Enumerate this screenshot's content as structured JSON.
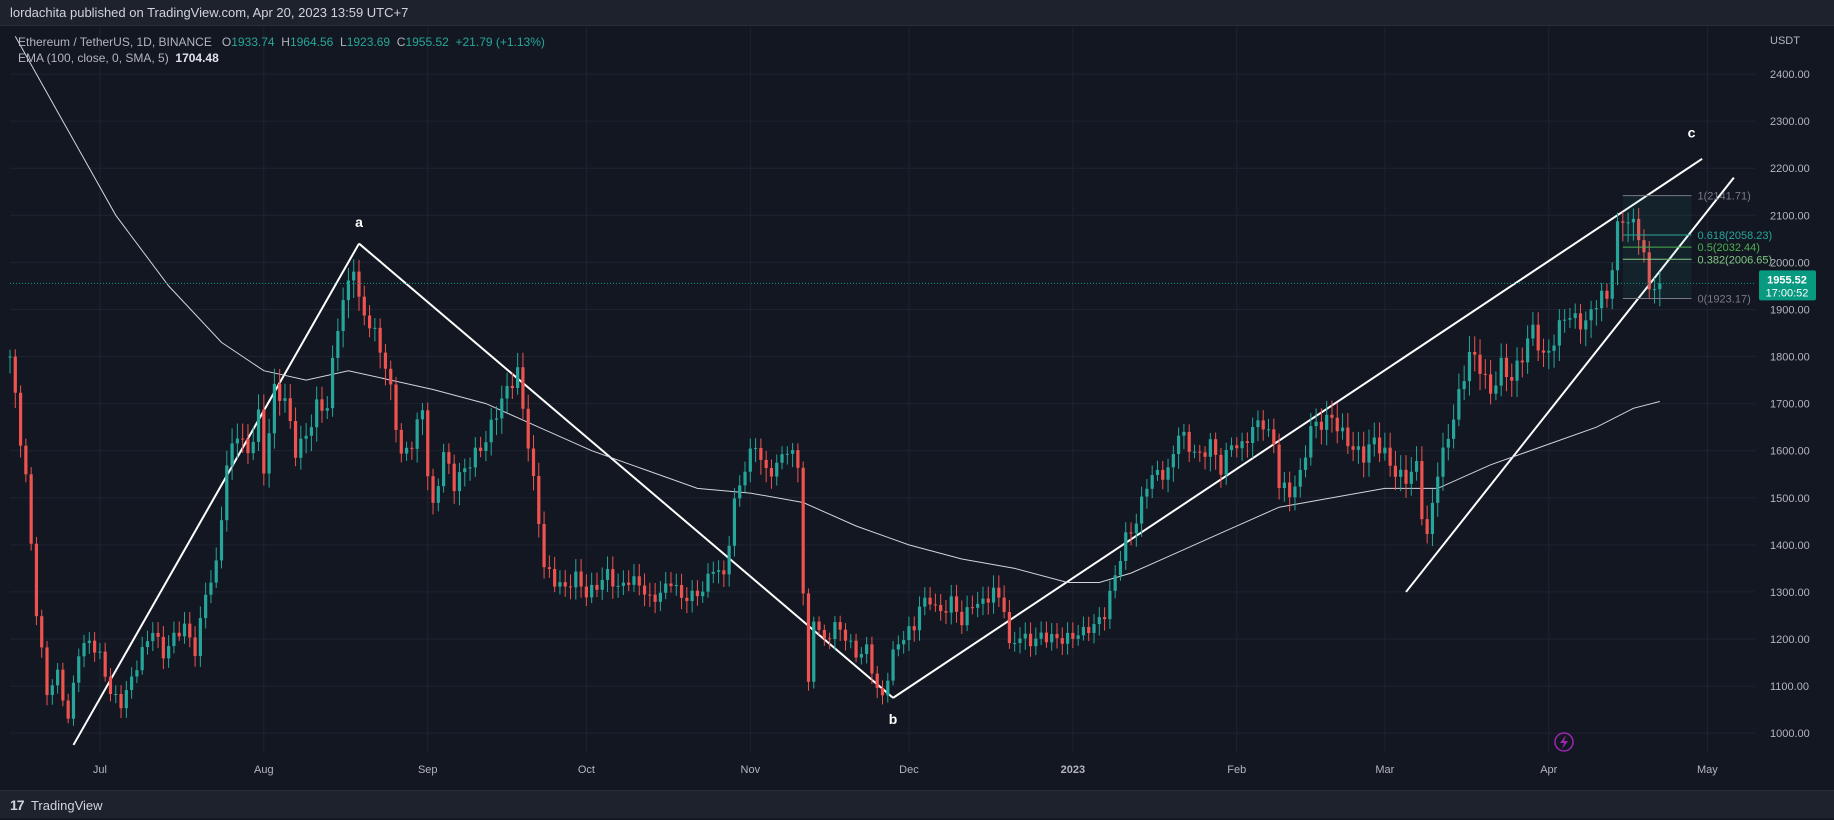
{
  "header": {
    "published": "lordachita published on TradingView.com, Apr 20, 2023 13:59 UTC+7"
  },
  "legend": {
    "symbol": "Ethereum / TetherUS, 1D, BINANCE",
    "o_label": "O",
    "o": "1933.74",
    "h_label": "H",
    "h": "1964.56",
    "l_label": "L",
    "l": "1923.69",
    "c_label": "C",
    "c": "1955.52",
    "change": "+21.79 (+1.13%)",
    "ema_label": "EMA (100, close, 0, SMA, 5)",
    "ema_value": "1704.48"
  },
  "footer": {
    "brand": "TradingView",
    "logo": "17"
  },
  "colors": {
    "bg": "#131722",
    "up": "#26a69a",
    "down": "#ef5350",
    "text": "#b2b5be",
    "price_tag": "#089981"
  },
  "chart_data": {
    "type": "candlestick",
    "title": "Ethereum / TetherUS, 1D, BINANCE",
    "currency": "USDT",
    "ylim": [
      960,
      2500
    ],
    "y_ticks": [
      1000,
      1100,
      1200,
      1300,
      1400,
      1500,
      1600,
      1700,
      1800,
      1900,
      2000,
      2100,
      2200,
      2300,
      2400
    ],
    "y_tick_labels": [
      "1000.00",
      "1100.00",
      "1200.00",
      "1300.00",
      "1400.00",
      "1500.00",
      "1600.00",
      "1700.00",
      "1800.00",
      "1900.00",
      "2000.00",
      "2100.00",
      "2200.00",
      "2300.00",
      "2400.00"
    ],
    "x_range_days": [
      0,
      330
    ],
    "x_ticks": [
      {
        "day": 17,
        "label": "Jul"
      },
      {
        "day": 48,
        "label": "Aug"
      },
      {
        "day": 79,
        "label": "Sep"
      },
      {
        "day": 109,
        "label": "Oct"
      },
      {
        "day": 140,
        "label": "Nov"
      },
      {
        "day": 170,
        "label": "Dec"
      },
      {
        "day": 201,
        "label": "2023"
      },
      {
        "day": 232,
        "label": "Feb"
      },
      {
        "day": 260,
        "label": "Mar"
      },
      {
        "day": 291,
        "label": "Apr"
      },
      {
        "day": 321,
        "label": "May"
      }
    ],
    "last_price": 1955.52,
    "last_price_label": "1955.52",
    "countdown": "17:00:52",
    "close_path": [
      [
        0,
        1800
      ],
      [
        3,
        1550
      ],
      [
        5,
        1260
      ],
      [
        7,
        1080
      ],
      [
        9,
        1120
      ],
      [
        11,
        1030
      ],
      [
        13,
        1180
      ],
      [
        15,
        1200
      ],
      [
        17,
        1160
      ],
      [
        19,
        1080
      ],
      [
        21,
        1060
      ],
      [
        23,
        1120
      ],
      [
        25,
        1180
      ],
      [
        27,
        1220
      ],
      [
        29,
        1160
      ],
      [
        31,
        1200
      ],
      [
        33,
        1230
      ],
      [
        35,
        1180
      ],
      [
        37,
        1300
      ],
      [
        39,
        1350
      ],
      [
        41,
        1560
      ],
      [
        43,
        1640
      ],
      [
        45,
        1600
      ],
      [
        47,
        1680
      ],
      [
        48,
        1560
      ],
      [
        50,
        1720
      ],
      [
        52,
        1700
      ],
      [
        54,
        1600
      ],
      [
        56,
        1640
      ],
      [
        58,
        1700
      ],
      [
        60,
        1690
      ],
      [
        62,
        1860
      ],
      [
        64,
        1950
      ],
      [
        65,
        2000
      ],
      [
        66,
        1920
      ],
      [
        68,
        1880
      ],
      [
        70,
        1820
      ],
      [
        72,
        1720
      ],
      [
        74,
        1580
      ],
      [
        76,
        1620
      ],
      [
        78,
        1700
      ],
      [
        79,
        1560
      ],
      [
        80,
        1480
      ],
      [
        82,
        1590
      ],
      [
        84,
        1520
      ],
      [
        86,
        1560
      ],
      [
        88,
        1600
      ],
      [
        90,
        1630
      ],
      [
        92,
        1680
      ],
      [
        94,
        1720
      ],
      [
        96,
        1760
      ],
      [
        98,
        1620
      ],
      [
        100,
        1460
      ],
      [
        101,
        1360
      ],
      [
        103,
        1320
      ],
      [
        105,
        1300
      ],
      [
        107,
        1330
      ],
      [
        109,
        1300
      ],
      [
        111,
        1320
      ],
      [
        113,
        1340
      ],
      [
        115,
        1300
      ],
      [
        117,
        1320
      ],
      [
        119,
        1320
      ],
      [
        121,
        1290
      ],
      [
        123,
        1300
      ],
      [
        125,
        1320
      ],
      [
        127,
        1280
      ],
      [
        129,
        1290
      ],
      [
        131,
        1310
      ],
      [
        133,
        1360
      ],
      [
        135,
        1330
      ],
      [
        137,
        1480
      ],
      [
        139,
        1560
      ],
      [
        141,
        1620
      ],
      [
        143,
        1560
      ],
      [
        145,
        1570
      ],
      [
        147,
        1600
      ],
      [
        149,
        1560
      ],
      [
        150,
        1300
      ],
      [
        151,
        1100
      ],
      [
        152,
        1250
      ],
      [
        154,
        1200
      ],
      [
        156,
        1230
      ],
      [
        158,
        1200
      ],
      [
        160,
        1160
      ],
      [
        162,
        1180
      ],
      [
        164,
        1100
      ],
      [
        165,
        1080
      ],
      [
        167,
        1170
      ],
      [
        169,
        1200
      ],
      [
        171,
        1220
      ],
      [
        172,
        1270
      ],
      [
        174,
        1290
      ],
      [
        176,
        1260
      ],
      [
        178,
        1280
      ],
      [
        180,
        1230
      ],
      [
        182,
        1270
      ],
      [
        184,
        1280
      ],
      [
        186,
        1310
      ],
      [
        188,
        1270
      ],
      [
        189,
        1180
      ],
      [
        191,
        1200
      ],
      [
        193,
        1190
      ],
      [
        195,
        1210
      ],
      [
        197,
        1210
      ],
      [
        199,
        1200
      ],
      [
        201,
        1200
      ],
      [
        203,
        1210
      ],
      [
        205,
        1230
      ],
      [
        207,
        1260
      ],
      [
        209,
        1340
      ],
      [
        211,
        1410
      ],
      [
        213,
        1440
      ],
      [
        215,
        1530
      ],
      [
        217,
        1560
      ],
      [
        219,
        1560
      ],
      [
        221,
        1640
      ],
      [
        223,
        1600
      ],
      [
        225,
        1580
      ],
      [
        227,
        1620
      ],
      [
        229,
        1570
      ],
      [
        231,
        1620
      ],
      [
        233,
        1600
      ],
      [
        235,
        1640
      ],
      [
        237,
        1660
      ],
      [
        239,
        1620
      ],
      [
        240,
        1540
      ],
      [
        242,
        1510
      ],
      [
        244,
        1540
      ],
      [
        246,
        1640
      ],
      [
        248,
        1660
      ],
      [
        250,
        1680
      ],
      [
        252,
        1640
      ],
      [
        254,
        1600
      ],
      [
        256,
        1580
      ],
      [
        258,
        1620
      ],
      [
        260,
        1600
      ],
      [
        262,
        1560
      ],
      [
        264,
        1540
      ],
      [
        266,
        1560
      ],
      [
        267,
        1460
      ],
      [
        268,
        1410
      ],
      [
        270,
        1560
      ],
      [
        272,
        1640
      ],
      [
        274,
        1720
      ],
      [
        276,
        1800
      ],
      [
        278,
        1770
      ],
      [
        280,
        1720
      ],
      [
        282,
        1790
      ],
      [
        284,
        1760
      ],
      [
        286,
        1800
      ],
      [
        288,
        1850
      ],
      [
        290,
        1790
      ],
      [
        292,
        1840
      ],
      [
        294,
        1900
      ],
      [
        296,
        1880
      ],
      [
        298,
        1860
      ],
      [
        300,
        1910
      ],
      [
        302,
        1930
      ],
      [
        303,
        2000
      ],
      [
        304,
        2080
      ],
      [
        305,
        2110
      ],
      [
        306,
        2090
      ],
      [
        307,
        2080
      ],
      [
        308,
        2060
      ],
      [
        309,
        2000
      ],
      [
        310,
        1930
      ],
      [
        311,
        1950
      ],
      [
        312,
        1955.52
      ]
    ],
    "ema_100": [
      [
        1,
        2480
      ],
      [
        10,
        2300
      ],
      [
        20,
        2100
      ],
      [
        30,
        1950
      ],
      [
        40,
        1830
      ],
      [
        48,
        1770
      ],
      [
        56,
        1750
      ],
      [
        64,
        1770
      ],
      [
        72,
        1750
      ],
      [
        80,
        1730
      ],
      [
        90,
        1700
      ],
      [
        100,
        1650
      ],
      [
        110,
        1600
      ],
      [
        120,
        1560
      ],
      [
        130,
        1520
      ],
      [
        140,
        1510
      ],
      [
        150,
        1490
      ],
      [
        160,
        1440
      ],
      [
        170,
        1400
      ],
      [
        180,
        1370
      ],
      [
        190,
        1350
      ],
      [
        200,
        1320
      ],
      [
        206,
        1320
      ],
      [
        212,
        1340
      ],
      [
        220,
        1380
      ],
      [
        230,
        1430
      ],
      [
        240,
        1480
      ],
      [
        250,
        1500
      ],
      [
        260,
        1520
      ],
      [
        265,
        1520
      ],
      [
        270,
        1520
      ],
      [
        280,
        1570
      ],
      [
        290,
        1610
      ],
      [
        300,
        1650
      ],
      [
        307,
        1690
      ],
      [
        312,
        1704.48
      ]
    ],
    "trendlines": [
      [
        [
          12,
          975
        ],
        [
          66,
          2040
        ]
      ],
      [
        [
          66,
          2040
        ],
        [
          167,
          1075
        ]
      ],
      [
        [
          167,
          1075
        ],
        [
          320,
          2220
        ]
      ],
      [
        [
          264,
          1300
        ],
        [
          326,
          2180
        ]
      ]
    ],
    "wave_labels": [
      {
        "label": "a",
        "day": 66,
        "value": 2075
      },
      {
        "label": "b",
        "day": 167,
        "value": 1020
      },
      {
        "label": "c",
        "day": 318,
        "value": 2265
      }
    ],
    "fibonacci": {
      "start_day": 305,
      "end_day": 318,
      "levels": [
        {
          "ratio": "1",
          "value": 2141.71,
          "label": "1(2141.71)",
          "color": "#787b86"
        },
        {
          "ratio": "0.618",
          "value": 2058.23,
          "label": "0.618(2058.23)",
          "color": "#26a69a"
        },
        {
          "ratio": "0.5",
          "value": 2032.44,
          "label": "0.5(2032.44)",
          "color": "#4caf50"
        },
        {
          "ratio": "0.382",
          "value": 2006.65,
          "label": "0.382(2006.65)",
          "color": "#81c784"
        },
        {
          "ratio": "0",
          "value": 1923.17,
          "label": "0(1923.17)",
          "color": "#787b86"
        }
      ]
    }
  }
}
